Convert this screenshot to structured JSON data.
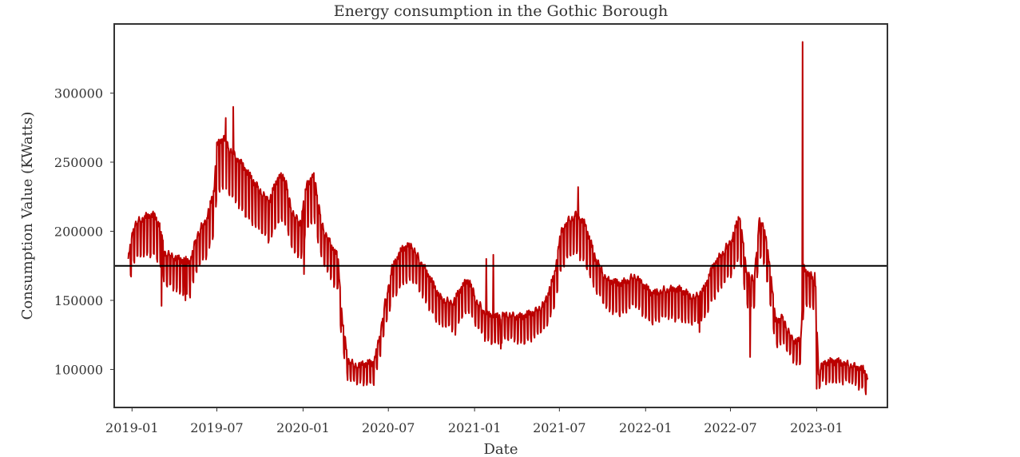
{
  "chart_data": {
    "type": "line",
    "title": "Energy consumption in the Gothic Borough",
    "xlabel": "Date",
    "ylabel": "Consumption Value (KWatts)",
    "x_ticks": [
      "2019-01",
      "2019-07",
      "2020-01",
      "2020-07",
      "2021-01",
      "2021-07",
      "2022-01",
      "2022-07",
      "2023-01"
    ],
    "y_ticks": [
      100000,
      150000,
      200000,
      250000,
      300000
    ],
    "ylim": [
      72500,
      350000
    ],
    "xlim": [
      "2018-11-24",
      "2023-06-01"
    ],
    "grid": false,
    "series": [
      {
        "color": "#bb0000",
        "weekly_pattern": true,
        "daily_points": [
          [
            "2018-12-24",
            180000
          ],
          [
            "2019-01-05",
            205000
          ],
          [
            "2019-01-25",
            210000
          ],
          [
            "2019-02-15",
            212000
          ],
          [
            "2019-03-01",
            205000
          ],
          [
            "2019-03-12",
            185000
          ],
          [
            "2019-04-10",
            180000
          ],
          [
            "2019-05-05",
            178000
          ],
          [
            "2019-05-20",
            198000
          ],
          [
            "2019-06-10",
            210000
          ],
          [
            "2019-06-25",
            230000
          ],
          [
            "2019-07-01",
            262000
          ],
          [
            "2019-07-15",
            268000
          ],
          [
            "2019-08-01",
            258000
          ],
          [
            "2019-08-20",
            250000
          ],
          [
            "2019-09-10",
            240000
          ],
          [
            "2019-10-01",
            230000
          ],
          [
            "2019-10-20",
            222000
          ],
          [
            "2019-11-10",
            240000
          ],
          [
            "2019-11-25",
            238000
          ],
          [
            "2019-12-05",
            218000
          ],
          [
            "2019-12-25",
            205000
          ],
          [
            "2020-01-10",
            235000
          ],
          [
            "2020-01-25",
            240000
          ],
          [
            "2020-02-10",
            205000
          ],
          [
            "2020-03-01",
            190000
          ],
          [
            "2020-03-15",
            182000
          ],
          [
            "2020-03-25",
            135000
          ],
          [
            "2020-04-05",
            108000
          ],
          [
            "2020-04-20",
            103000
          ],
          [
            "2020-05-10",
            104000
          ],
          [
            "2020-05-31",
            105000
          ],
          [
            "2020-06-10",
            120000
          ],
          [
            "2020-06-25",
            150000
          ],
          [
            "2020-07-10",
            175000
          ],
          [
            "2020-08-01",
            188000
          ],
          [
            "2020-08-20",
            190000
          ],
          [
            "2020-09-05",
            180000
          ],
          [
            "2020-09-25",
            168000
          ],
          [
            "2020-10-20",
            152000
          ],
          [
            "2020-11-15",
            148000
          ],
          [
            "2020-12-05",
            160000
          ],
          [
            "2020-12-20",
            165000
          ],
          [
            "2021-01-05",
            150000
          ],
          [
            "2021-01-25",
            140000
          ],
          [
            "2021-02-15",
            138000
          ],
          [
            "2021-03-10",
            140000
          ],
          [
            "2021-04-10",
            138000
          ],
          [
            "2021-05-10",
            142000
          ],
          [
            "2021-05-30",
            148000
          ],
          [
            "2021-06-20",
            168000
          ],
          [
            "2021-07-05",
            200000
          ],
          [
            "2021-07-20",
            208000
          ],
          [
            "2021-08-05",
            212000
          ],
          [
            "2021-08-25",
            205000
          ],
          [
            "2021-09-15",
            182000
          ],
          [
            "2021-10-10",
            165000
          ],
          [
            "2021-11-10",
            162000
          ],
          [
            "2021-12-10",
            168000
          ],
          [
            "2021-12-25",
            162000
          ],
          [
            "2022-01-15",
            155000
          ],
          [
            "2022-02-15",
            158000
          ],
          [
            "2022-03-15",
            158000
          ],
          [
            "2022-04-15",
            152000
          ],
          [
            "2022-05-05",
            158000
          ],
          [
            "2022-05-25",
            175000
          ],
          [
            "2022-06-15",
            185000
          ],
          [
            "2022-07-05",
            195000
          ],
          [
            "2022-07-20",
            212000
          ],
          [
            "2022-08-05",
            170000
          ],
          [
            "2022-08-20",
            165000
          ],
          [
            "2022-09-01",
            208000
          ],
          [
            "2022-09-10",
            205000
          ],
          [
            "2022-09-25",
            170000
          ],
          [
            "2022-10-05",
            135000
          ],
          [
            "2022-10-20",
            138000
          ],
          [
            "2022-11-10",
            122000
          ],
          [
            "2022-11-28",
            120000
          ],
          [
            "2022-12-05",
            175000
          ],
          [
            "2022-12-10",
            168000
          ],
          [
            "2022-12-20",
            170000
          ],
          [
            "2022-12-30",
            160000
          ],
          [
            "2023-01-05",
            98000
          ],
          [
            "2023-01-15",
            105000
          ],
          [
            "2023-02-10",
            106000
          ],
          [
            "2023-03-10",
            104000
          ],
          [
            "2023-04-10",
            100000
          ],
          [
            "2023-04-20",
            95000
          ]
        ],
        "spikes": [
          [
            "2019-03-05",
            146000
          ],
          [
            "2019-04-25",
            150000
          ],
          [
            "2019-07-20",
            282000
          ],
          [
            "2019-08-05",
            290000
          ],
          [
            "2020-01-03",
            169000
          ],
          [
            "2020-11-21",
            125000
          ],
          [
            "2021-01-26",
            180000
          ],
          [
            "2021-02-10",
            183000
          ],
          [
            "2021-02-26",
            115000
          ],
          [
            "2021-08-10",
            232000
          ],
          [
            "2022-04-26",
            127000
          ],
          [
            "2022-08-12",
            109000
          ],
          [
            "2022-12-02",
            337000
          ],
          [
            "2022-12-28",
            170000
          ],
          [
            "2023-01-01",
            86000
          ],
          [
            "2023-04-15",
            85000
          ]
        ]
      }
    ],
    "reference_lines": [
      {
        "axis": "y",
        "value": 175000,
        "color": "#000000"
      }
    ]
  }
}
